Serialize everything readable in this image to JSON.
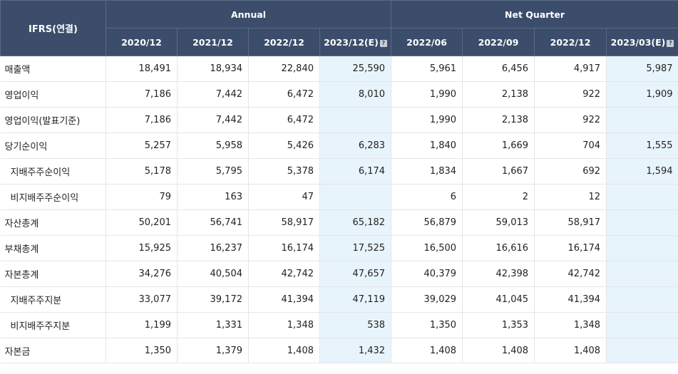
{
  "header": {
    "corner": "IFRS(연결)",
    "annual": "Annual",
    "quarter": "Net Quarter",
    "periods": [
      "2020/12",
      "2021/12",
      "2022/12",
      "2023/12(E)",
      "2022/06",
      "2022/09",
      "2022/12",
      "2023/03(E)"
    ]
  },
  "rows": [
    {
      "label": "매출액",
      "values": [
        "18,491",
        "18,934",
        "22,840",
        "25,590",
        "5,961",
        "6,456",
        "4,917",
        "5,987"
      ]
    },
    {
      "label": "영업이익",
      "values": [
        "7,186",
        "7,442",
        "6,472",
        "8,010",
        "1,990",
        "2,138",
        "922",
        "1,909"
      ]
    },
    {
      "label": "영업이익(발표기준)",
      "values": [
        "7,186",
        "7,442",
        "6,472",
        "",
        "1,990",
        "2,138",
        "922",
        ""
      ]
    },
    {
      "label": "당기순이익",
      "values": [
        "5,257",
        "5,958",
        "5,426",
        "6,283",
        "1,840",
        "1,669",
        "704",
        "1,555"
      ]
    },
    {
      "label": "지배주주순이익",
      "values": [
        "5,178",
        "5,795",
        "5,378",
        "6,174",
        "1,834",
        "1,667",
        "692",
        "1,594"
      ]
    },
    {
      "label": "비지배주주순이익",
      "values": [
        "79",
        "163",
        "47",
        "",
        "6",
        "2",
        "12",
        ""
      ]
    },
    {
      "label": "자산총계",
      "values": [
        "50,201",
        "56,741",
        "58,917",
        "65,182",
        "56,879",
        "59,013",
        "58,917",
        ""
      ]
    },
    {
      "label": "부채총계",
      "values": [
        "15,925",
        "16,237",
        "16,174",
        "17,525",
        "16,500",
        "16,616",
        "16,174",
        ""
      ]
    },
    {
      "label": "자본총계",
      "values": [
        "34,276",
        "40,504",
        "42,742",
        "47,657",
        "40,379",
        "42,398",
        "42,742",
        ""
      ]
    },
    {
      "label": "지배주주지분",
      "values": [
        "33,077",
        "39,172",
        "41,394",
        "47,119",
        "39,029",
        "41,045",
        "41,394",
        ""
      ]
    },
    {
      "label": "비지배주주지분",
      "values": [
        "1,199",
        "1,331",
        "1,348",
        "538",
        "1,350",
        "1,353",
        "1,348",
        ""
      ]
    },
    {
      "label": "자본금",
      "values": [
        "1,350",
        "1,379",
        "1,408",
        "1,432",
        "1,408",
        "1,408",
        "1,408",
        ""
      ]
    }
  ],
  "icons": {
    "estimate_help": "help-icon"
  }
}
